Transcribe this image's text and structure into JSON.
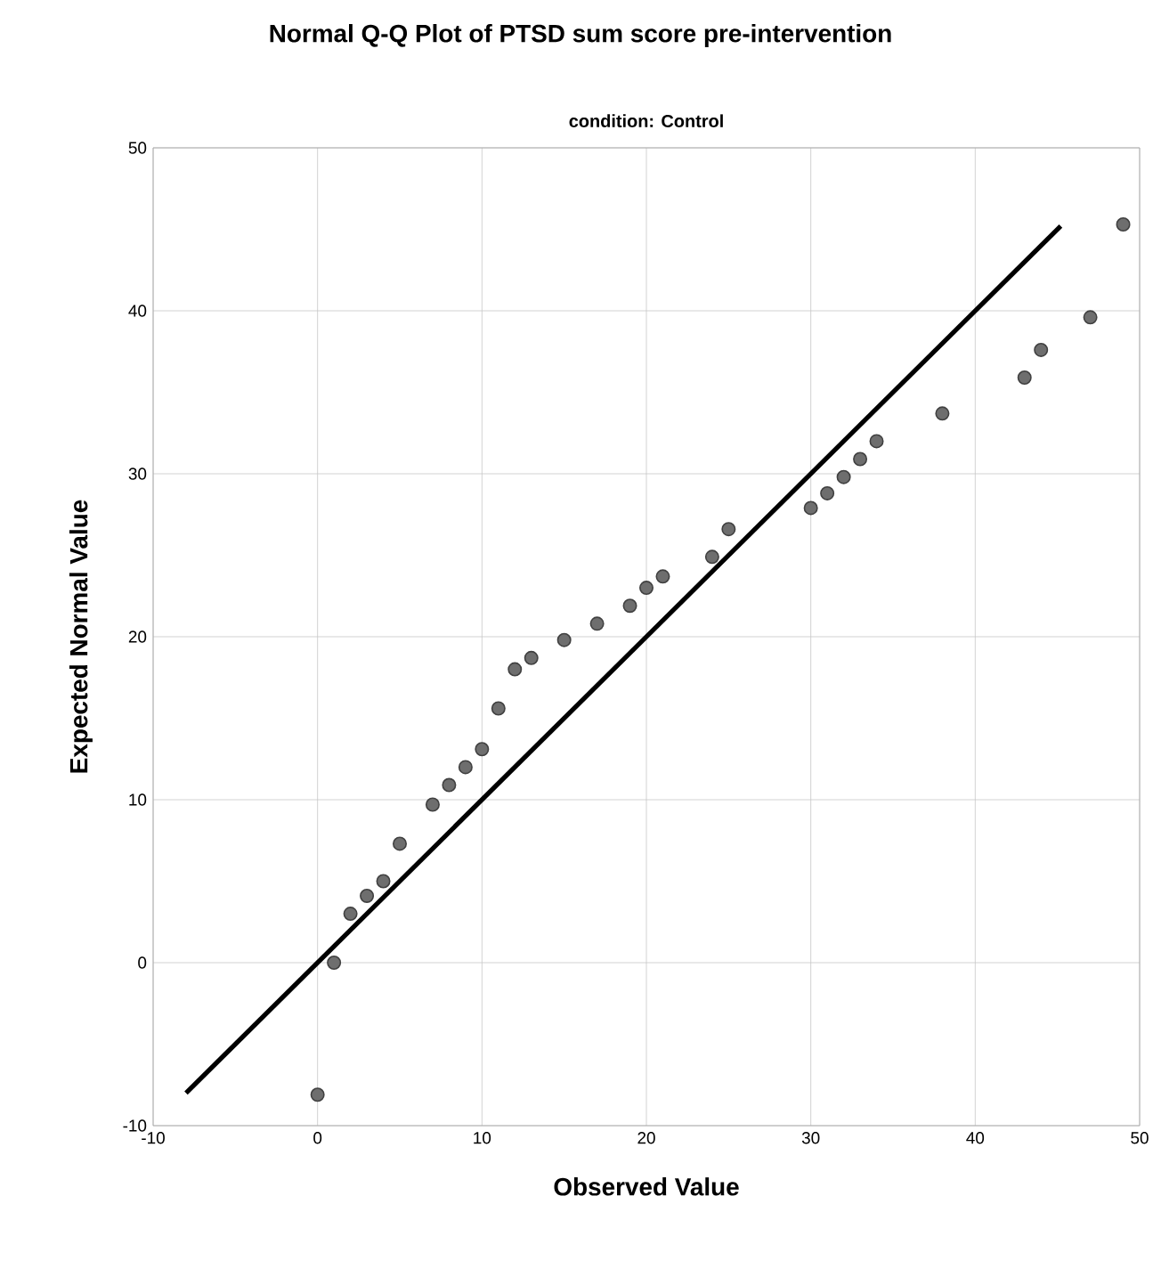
{
  "chart_data": {
    "type": "scatter",
    "title": "Normal Q-Q Plot of PTSD sum score pre-intervention",
    "subtitle": "condition: Control",
    "xlabel": "Observed Value",
    "ylabel": "Expected Normal Value",
    "xlim": [
      -10,
      50
    ],
    "ylim": [
      -10,
      50
    ],
    "xticks": [
      -10,
      0,
      10,
      20,
      30,
      40,
      50
    ],
    "yticks": [
      -10,
      0,
      10,
      20,
      30,
      40,
      50
    ],
    "grid": true,
    "series": [
      {
        "marker": "circle",
        "color": "#6e6e6e",
        "x": [
          0,
          1,
          2,
          3,
          4,
          5,
          7,
          8,
          9,
          10,
          11,
          12,
          13,
          15,
          17,
          19,
          20,
          21,
          24,
          25,
          30,
          31,
          32,
          33,
          34,
          38,
          43,
          44,
          47,
          49
        ],
        "values": [
          -8.1,
          0,
          3.0,
          4.1,
          5.0,
          7.3,
          9.7,
          10.9,
          12.0,
          13.1,
          15.6,
          18.0,
          18.7,
          19.8,
          20.8,
          21.9,
          23.0,
          23.7,
          24.9,
          26.6,
          27.9,
          28.8,
          29.8,
          30.9,
          32.0,
          33.7,
          35.9,
          37.6,
          39.6,
          45.3
        ]
      },
      {
        "type": "line",
        "color": "#000000",
        "x": [
          -8,
          45.2
        ],
        "values": [
          -8,
          45.2
        ]
      }
    ]
  }
}
